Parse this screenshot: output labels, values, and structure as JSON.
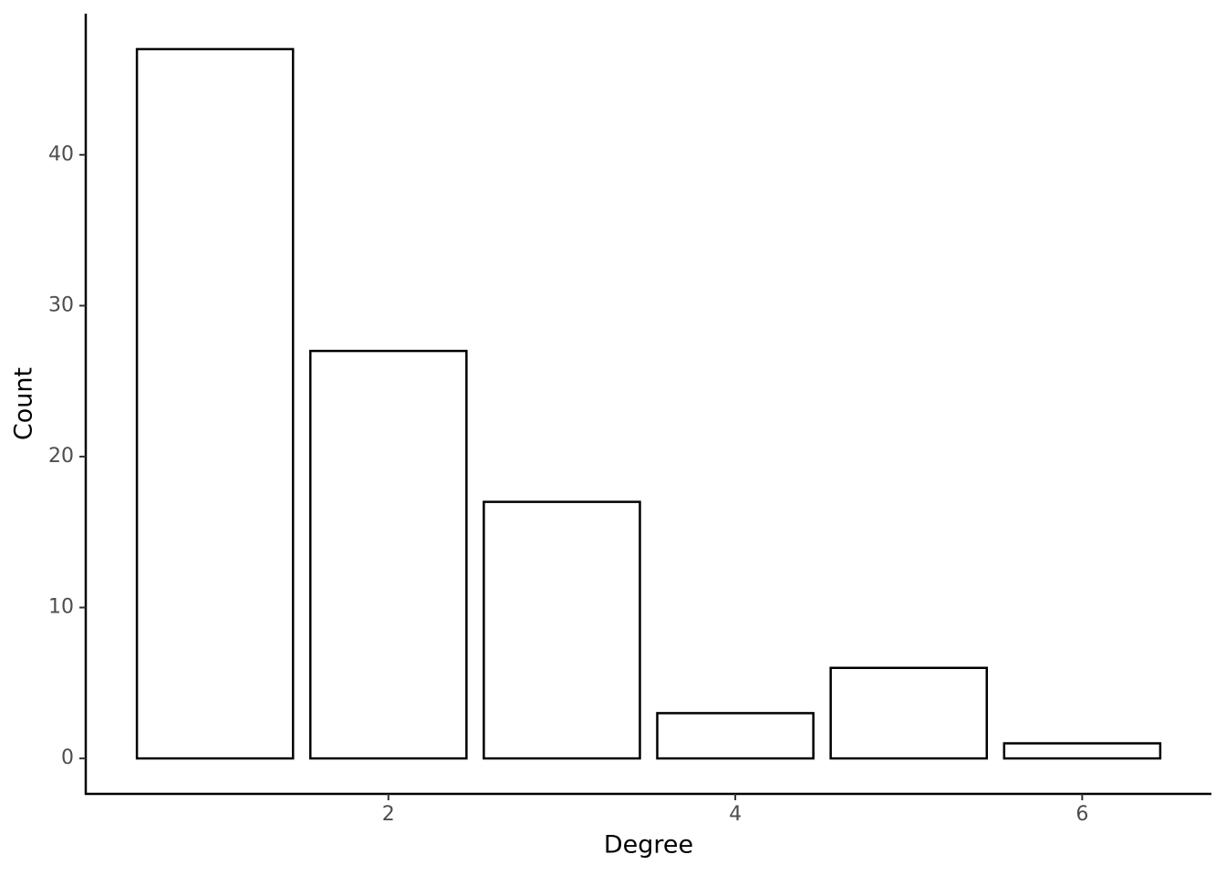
{
  "chart_data": {
    "type": "bar",
    "x": [
      1,
      2,
      3,
      4,
      5,
      6
    ],
    "values": [
      47,
      27,
      17,
      3,
      6,
      1
    ],
    "color": "#ffffff",
    "edgecolor": "#000000",
    "xlabel": "Degree",
    "ylabel": "Count",
    "xlim": [
      0.255,
      6.745
    ],
    "ylim": [
      -2.35,
      49.35
    ],
    "xticks": [
      2,
      4,
      6
    ],
    "yticks": [
      0,
      10,
      20,
      30,
      40
    ],
    "grid": false
  }
}
